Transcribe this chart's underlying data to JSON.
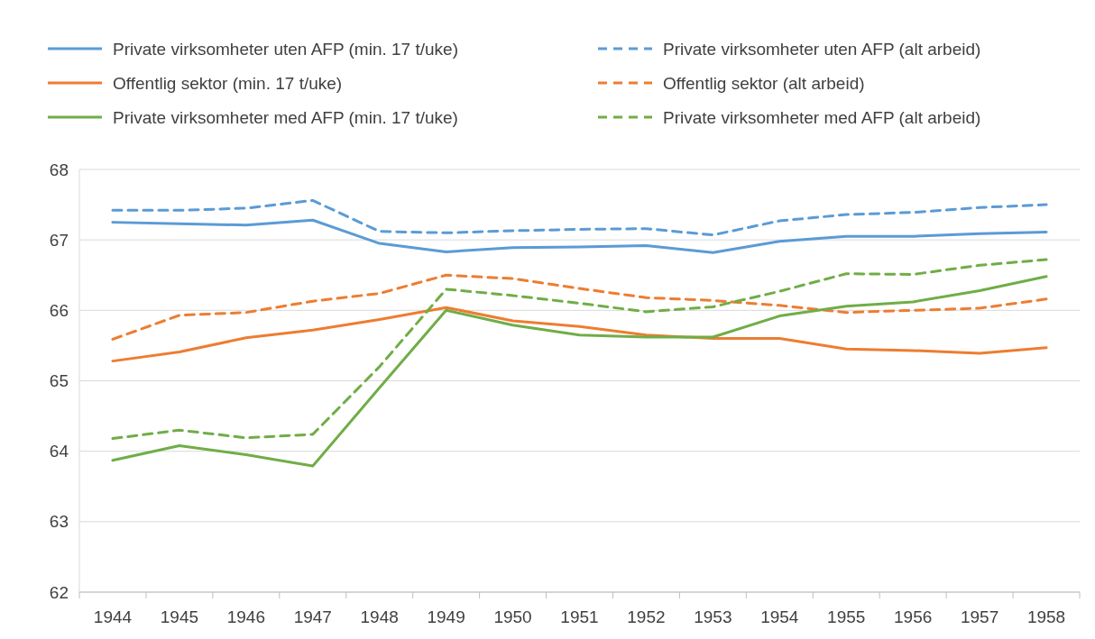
{
  "chart_data": {
    "type": "line",
    "categories": [
      "1944",
      "1945",
      "1946",
      "1947",
      "1948",
      "1949",
      "1950",
      "1951",
      "1952",
      "1953",
      "1954",
      "1955",
      "1956",
      "1957",
      "1958"
    ],
    "ylim": [
      62,
      68
    ],
    "yticks": [
      62,
      63,
      64,
      65,
      66,
      67,
      68
    ],
    "grid": "y",
    "legend": "top",
    "series": [
      {
        "name": "Private virksomheter uten AFP (min. 17 t/uke)",
        "color": "#5b9bd5",
        "line_style": "solid",
        "values": [
          67.25,
          67.23,
          67.21,
          67.28,
          66.95,
          66.83,
          66.89,
          66.9,
          66.92,
          66.82,
          66.98,
          67.05,
          67.05,
          67.09,
          67.11
        ]
      },
      {
        "name": "Private virksomheter uten AFP (alt arbeid)",
        "color": "#5b9bd5",
        "line_style": "dashed",
        "values": [
          67.42,
          67.42,
          67.45,
          67.56,
          67.12,
          67.1,
          67.13,
          67.15,
          67.16,
          67.07,
          67.27,
          67.36,
          67.39,
          67.46,
          67.5
        ]
      },
      {
        "name": "Offentlig sektor (min. 17 t/uke)",
        "color": "#ed7d31",
        "line_style": "solid",
        "values": [
          65.28,
          65.41,
          65.61,
          65.72,
          65.87,
          66.04,
          65.85,
          65.77,
          65.65,
          65.6,
          65.6,
          65.45,
          65.43,
          65.39,
          65.47
        ]
      },
      {
        "name": "Offentlig sektor (alt arbeid)",
        "color": "#ed7d31",
        "line_style": "dashed",
        "values": [
          65.59,
          65.93,
          65.97,
          66.13,
          66.24,
          66.5,
          66.45,
          66.31,
          66.18,
          66.14,
          66.07,
          65.97,
          66.0,
          66.03,
          66.16
        ]
      },
      {
        "name": "Private virksomheter med AFP (min. 17 t/uke)",
        "color": "#70ad47",
        "line_style": "solid",
        "values": [
          63.87,
          64.08,
          63.95,
          63.79,
          64.9,
          66.0,
          65.79,
          65.65,
          65.62,
          65.62,
          65.92,
          66.06,
          66.12,
          66.28,
          66.48
        ]
      },
      {
        "name": "Private virksomheter med AFP (alt arbeid)",
        "color": "#70ad47",
        "line_style": "dashed",
        "values": [
          64.18,
          64.3,
          64.19,
          64.24,
          65.2,
          66.3,
          66.21,
          66.1,
          65.98,
          66.05,
          66.27,
          66.52,
          66.51,
          66.64,
          66.72
        ]
      }
    ]
  }
}
